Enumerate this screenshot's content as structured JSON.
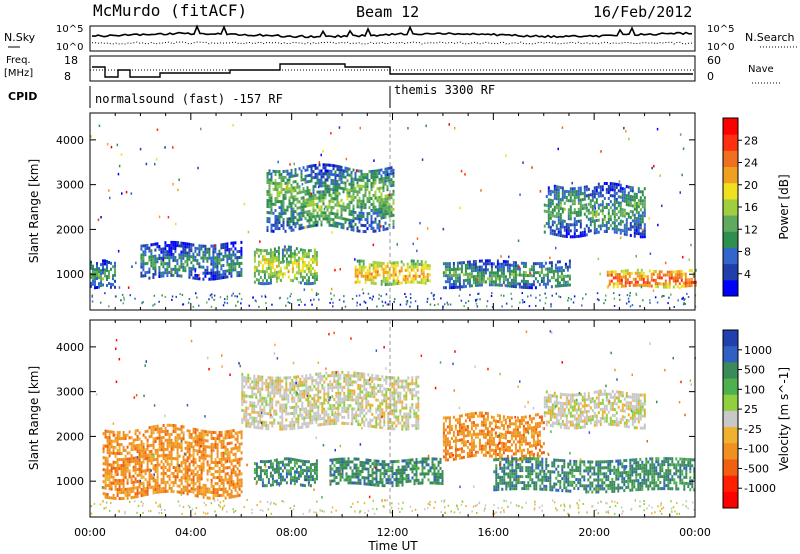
{
  "header": {
    "station": "McMurdo (fitACF)",
    "beam": "Beam 12",
    "date": "16/Feb/2012"
  },
  "noise_panel": {
    "left_label": "N.Sky",
    "right_label": "N.Search",
    "left_ticks": [
      "10^5",
      "10^0"
    ],
    "right_ticks": [
      "10^5",
      "10^0"
    ]
  },
  "freq_panel": {
    "left_label_1": "Freq.",
    "left_label_2": "[MHz]",
    "left_ticks": [
      "18",
      "8"
    ],
    "right_label": "Nave",
    "right_ticks": [
      "60",
      "0"
    ]
  },
  "cpid": {
    "label": "CPID",
    "segments": [
      {
        "text": "normalsound (fast) -157 RF",
        "start_hour": 0
      },
      {
        "text": "themis 3300 RF",
        "start_hour": 12
      }
    ]
  },
  "chart_data": [
    {
      "type": "heatmap",
      "name": "Power",
      "ylabel": "Slant Range [km]",
      "xlabel": "Time UT",
      "x_range_hours": [
        0,
        24
      ],
      "ylim": [
        200,
        4600
      ],
      "y_ticks": [
        1000,
        2000,
        3000,
        4000
      ],
      "x_ticks": [
        "00:00",
        "04:00",
        "08:00",
        "12:00",
        "16:00",
        "20:00",
        "00:00"
      ],
      "colorbar": {
        "label": "Power [dB]",
        "ticks": [
          "4",
          "8",
          "12",
          "16",
          "20",
          "24",
          "28"
        ],
        "colors": [
          "#0000ff",
          "#1f3faa",
          "#3366cc",
          "#2f8f4f",
          "#5faa5f",
          "#9fcf3f",
          "#f0e020",
          "#f0a020",
          "#f07020",
          "#ff3010",
          "#ff0000"
        ]
      },
      "echo_bands": [
        {
          "t0": 0.0,
          "t1": 1.0,
          "r0": 700,
          "r1": 1300,
          "level": 14
        },
        {
          "t0": 2.0,
          "t1": 6.0,
          "r0": 900,
          "r1": 1700,
          "level": 12
        },
        {
          "t0": 6.5,
          "t1": 9.0,
          "r0": 800,
          "r1": 1600,
          "level": 20
        },
        {
          "t0": 10.5,
          "t1": 13.5,
          "r0": 800,
          "r1": 1300,
          "level": 24
        },
        {
          "t0": 14.0,
          "t1": 19.0,
          "r0": 700,
          "r1": 1300,
          "level": 14
        },
        {
          "t0": 20.5,
          "t1": 24.0,
          "r0": 700,
          "r1": 1100,
          "level": 28
        },
        {
          "t0": 7.0,
          "t1": 12.0,
          "r0": 2000,
          "r1": 3400,
          "level": 16
        },
        {
          "t0": 18.0,
          "t1": 22.0,
          "r0": 1900,
          "r1": 3000,
          "level": 14
        }
      ]
    },
    {
      "type": "heatmap",
      "name": "Velocity",
      "ylabel": "Slant Range [km]",
      "xlabel": "Time UT",
      "x_range_hours": [
        0,
        24
      ],
      "ylim": [
        200,
        4600
      ],
      "y_ticks": [
        1000,
        2000,
        3000,
        4000
      ],
      "x_ticks": [
        "00:00",
        "04:00",
        "08:00",
        "12:00",
        "16:00",
        "20:00",
        "00:00"
      ],
      "colorbar": {
        "label": "Velocity [m s^-1]",
        "unit_exponent": "-1",
        "ticks": [
          "1000",
          "500",
          "100",
          "25",
          "-25",
          "-100",
          "-500",
          "-1000"
        ],
        "colors": [
          "#2040b0",
          "#3060c0",
          "#3a8a5a",
          "#4fb04f",
          "#90d040",
          "#c8c8c8",
          "#f0b030",
          "#f09020",
          "#f06010",
          "#ff2000",
          "#ff0000"
        ]
      },
      "echo_bands": [
        {
          "t0": 0.5,
          "t1": 6.0,
          "r0": 700,
          "r1": 2200,
          "level": -100
        },
        {
          "t0": 6.5,
          "t1": 9.0,
          "r0": 900,
          "r1": 1500,
          "level": 100
        },
        {
          "t0": 6.0,
          "t1": 13.0,
          "r0": 2200,
          "r1": 3400,
          "level": 0
        },
        {
          "t0": 9.5,
          "t1": 14.0,
          "r0": 900,
          "r1": 1500,
          "level": 100
        },
        {
          "t0": 14.0,
          "t1": 18.0,
          "r0": 1500,
          "r1": 2500,
          "level": -100
        },
        {
          "t0": 16.0,
          "t1": 24.0,
          "r0": 800,
          "r1": 1500,
          "level": 100
        },
        {
          "t0": 18.0,
          "t1": 22.0,
          "r0": 2200,
          "r1": 3000,
          "level": 0
        }
      ]
    }
  ]
}
